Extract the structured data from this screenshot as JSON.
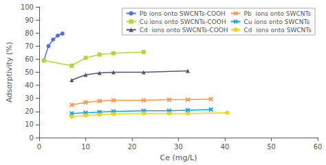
{
  "chart_data": {
    "type": "line",
    "xlabel": "Ce (mg/L)",
    "ylabel": "Adsorptivity (%)",
    "xlim": [
      0,
      60
    ],
    "ylim": [
      0,
      100
    ],
    "xticks": [
      0,
      10,
      20,
      30,
      40,
      50,
      60
    ],
    "yticks": [
      0,
      10,
      20,
      30,
      40,
      50,
      60,
      70,
      80,
      90,
      100
    ],
    "grid": false,
    "legend": "upper right",
    "series": [
      {
        "name": "Pb ions onto SWCNTs-COOH",
        "marker": "circle",
        "x": [
          1.0,
          2.0,
          3.0,
          4.0,
          5.0
        ],
        "values": [
          59.0,
          70.0,
          75.0,
          78.0,
          79.5
        ]
      },
      {
        "name": "Cu ions onto SWCNTs-COOH",
        "marker": "square",
        "x": [
          1.0,
          7.0,
          10.0,
          13.0,
          16.0,
          22.5
        ],
        "values": [
          59.0,
          55.0,
          61.0,
          63.5,
          64.5,
          65.5
        ]
      },
      {
        "name": "Cd  ions onto SWCNTs-COOH",
        "marker": "triangle",
        "x": [
          7.0,
          10.0,
          13.0,
          16.0,
          22.5,
          32.0
        ],
        "values": [
          44.0,
          48.0,
          49.5,
          50.0,
          50.0,
          51.0
        ]
      },
      {
        "name": "Pb  ions onto SWCNTs",
        "marker": "x",
        "x": [
          7.0,
          10.0,
          13.0,
          16.0,
          22.5,
          28.0,
          32.0,
          37.0
        ],
        "values": [
          25.0,
          27.0,
          28.0,
          28.5,
          28.5,
          29.0,
          29.0,
          29.5
        ]
      },
      {
        "name": "Cu ions onto SWCNTs",
        "marker": "x",
        "x": [
          7.0,
          10.0,
          13.0,
          16.0,
          22.5,
          28.0,
          32.0,
          37.0
        ],
        "values": [
          18.5,
          19.0,
          19.5,
          20.0,
          20.5,
          20.5,
          21.0,
          21.5
        ]
      },
      {
        "name": "Cd  ions onto SWCNTs",
        "marker": "circle",
        "x": [
          7.0,
          10.0,
          13.0,
          16.0,
          22.5,
          28.0,
          32.0,
          40.5
        ],
        "values": [
          16.0,
          17.0,
          17.5,
          18.0,
          18.5,
          18.5,
          18.5,
          19.0
        ]
      }
    ]
  }
}
